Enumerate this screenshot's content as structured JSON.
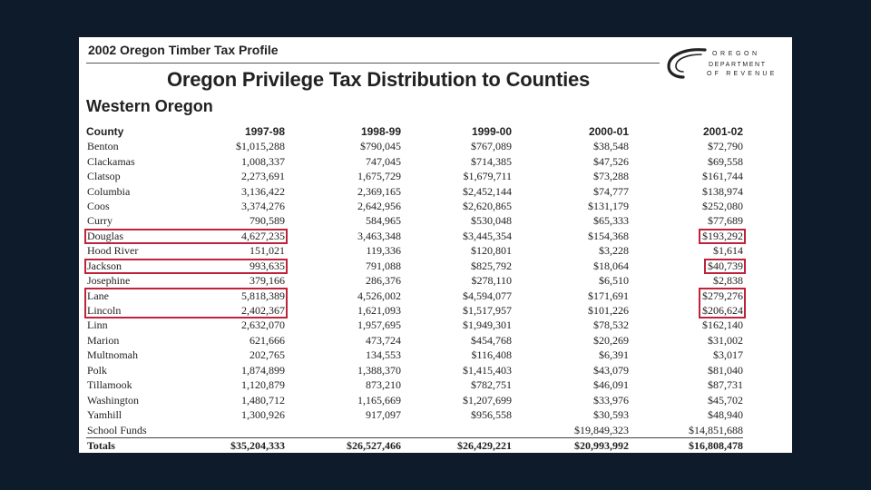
{
  "document": {
    "profile_title": "2002 Oregon Timber Tax Profile",
    "main_title": "Oregon Privilege Tax Distribution to Counties",
    "section_title": "Western Oregon",
    "logo": {
      "line1": "OREGON",
      "line2": "DEPARTMENT",
      "line3": "OF REVENUE"
    }
  },
  "table": {
    "headers": [
      "County",
      "1997-98",
      "1998-99",
      "1999-00",
      "2000-01",
      "2001-02"
    ],
    "rows": [
      [
        "Benton",
        "$1,015,288",
        "$790,045",
        "$767,089",
        "$38,548",
        "$72,790"
      ],
      [
        "Clackamas",
        "1,008,337",
        "747,045",
        "$714,385",
        "$47,526",
        "$69,558"
      ],
      [
        "Clatsop",
        "2,273,691",
        "1,675,729",
        "$1,679,711",
        "$73,288",
        "$161,744"
      ],
      [
        "Columbia",
        "3,136,422",
        "2,369,165",
        "$2,452,144",
        "$74,777",
        "$138,974"
      ],
      [
        "Coos",
        "3,374,276",
        "2,642,956",
        "$2,620,865",
        "$131,179",
        "$252,080"
      ],
      [
        "Curry",
        "790,589",
        "584,965",
        "$530,048",
        "$65,333",
        "$77,689"
      ],
      [
        "Douglas",
        "4,627,235",
        "3,463,348",
        "$3,445,354",
        "$154,368",
        "$193,292"
      ],
      [
        "Hood River",
        "151,021",
        "119,336",
        "$120,801",
        "$3,228",
        "$1,614"
      ],
      [
        "Jackson",
        "993,635",
        "791,088",
        "$825,792",
        "$18,064",
        "$40,739"
      ],
      [
        "Josephine",
        "379,166",
        "286,376",
        "$278,110",
        "$6,510",
        "$2,838"
      ],
      [
        "Lane",
        "5,818,389",
        "4,526,002",
        "$4,594,077",
        "$171,691",
        "$279,276"
      ],
      [
        "Lincoln",
        "2,402,367",
        "1,621,093",
        "$1,517,957",
        "$101,226",
        "$206,624"
      ],
      [
        "Linn",
        "2,632,070",
        "1,957,695",
        "$1,949,301",
        "$78,532",
        "$162,140"
      ],
      [
        "Marion",
        "621,666",
        "473,724",
        "$454,768",
        "$20,269",
        "$31,002"
      ],
      [
        "Multnomah",
        "202,765",
        "134,553",
        "$116,408",
        "$6,391",
        "$3,017"
      ],
      [
        "Polk",
        "1,874,899",
        "1,388,370",
        "$1,415,403",
        "$43,079",
        "$81,040"
      ],
      [
        "Tillamook",
        "1,120,879",
        "873,210",
        "$782,751",
        "$46,091",
        "$87,731"
      ],
      [
        "Washington",
        "1,480,712",
        "1,165,669",
        "$1,207,699",
        "$33,976",
        "$45,702"
      ],
      [
        "Yamhill",
        "1,300,926",
        "917,097",
        "$956,558",
        "$30,593",
        "$48,940"
      ],
      [
        "School Funds",
        "",
        "",
        "",
        "$19,849,323",
        "$14,851,688"
      ]
    ],
    "totals": [
      "Totals",
      "$35,204,333",
      "$26,527,466",
      "$26,429,221",
      "$20,993,992",
      "$16,808,478"
    ]
  },
  "highlight_color": "#c0223a"
}
